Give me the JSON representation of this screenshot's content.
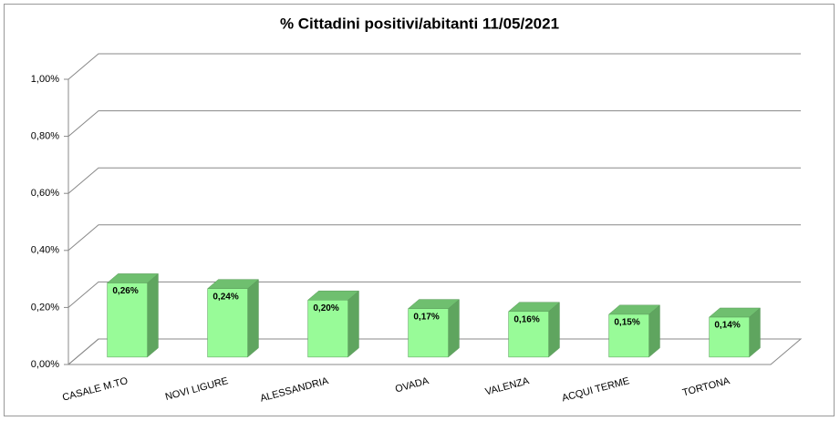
{
  "chart_data": {
    "type": "bar3d",
    "title": "% Cittadini positivi/abitanti 11/05/2021",
    "categories": [
      "CASALE M.TO",
      "NOVI LIGURE",
      "ALESSANDRIA",
      "OVADA",
      "VALENZA",
      "ACQUI TERME",
      "TORTONA"
    ],
    "values": [
      0.26,
      0.24,
      0.2,
      0.17,
      0.16,
      0.15,
      0.14
    ],
    "value_labels": [
      "0,26%",
      "0,24%",
      "0,20%",
      "0,17%",
      "0,16%",
      "0,15%",
      "0,14%"
    ],
    "color": "#98fb98",
    "ylim": [
      0,
      1
    ],
    "yticks": [
      {
        "value": 0,
        "label": "0,00%"
      },
      {
        "value": 0.2,
        "label": "0,20%"
      },
      {
        "value": 0.4,
        "label": "0,40%"
      },
      {
        "value": 0.6,
        "label": "0,60%"
      },
      {
        "value": 0.8,
        "label": "0,80%"
      },
      {
        "value": 1,
        "label": "1,00%"
      }
    ],
    "grid": true
  }
}
